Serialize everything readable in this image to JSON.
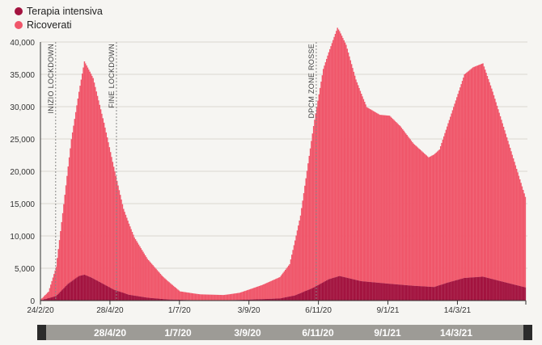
{
  "legend": [
    {
      "label": "Terapia intensiva",
      "color": "#a3133f"
    },
    {
      "label": "Ricoverati",
      "color": "#f0566a"
    }
  ],
  "annotations": [
    {
      "label": "INIZIO LOCKDOWN",
      "date": "2020-03-09"
    },
    {
      "label": "FINE LOCKDOWN",
      "date": "2020-05-04"
    },
    {
      "label": "DPCM ZONE ROSSE",
      "date": "2020-11-04"
    }
  ],
  "navigator": {
    "labels": [
      "28/4/20",
      "1/7/20",
      "3/9/20",
      "6/11/20",
      "9/1/21",
      "14/3/21"
    ]
  },
  "chart_data": {
    "type": "bar",
    "title": "",
    "xlabel": "",
    "ylabel": "",
    "ylim": [
      0,
      40000
    ],
    "yticks": [
      "0",
      "5,000",
      "10,000",
      "15,000",
      "20,000",
      "25,000",
      "30,000",
      "35,000",
      "40,000"
    ],
    "xticks": [
      "24/2/20",
      "28/4/20",
      "1/7/20",
      "3/9/20",
      "6/11/20",
      "9/1/21",
      "14/3/21"
    ],
    "xrange": [
      "2020-02-24",
      "2021-05-16"
    ],
    "stacked": true,
    "grid": true,
    "series": [
      {
        "name": "Terapia intensiva",
        "color": "#a3133f",
        "points": [
          [
            "2020-02-24",
            50
          ],
          [
            "2020-03-09",
            700
          ],
          [
            "2020-03-20",
            2600
          ],
          [
            "2020-03-30",
            3800
          ],
          [
            "2020-04-04",
            4000
          ],
          [
            "2020-04-10",
            3600
          ],
          [
            "2020-04-20",
            2700
          ],
          [
            "2020-05-01",
            1700
          ],
          [
            "2020-05-15",
            900
          ],
          [
            "2020-06-01",
            450
          ],
          [
            "2020-06-20",
            170
          ],
          [
            "2020-07-15",
            60
          ],
          [
            "2020-08-15",
            60
          ],
          [
            "2020-09-03",
            150
          ],
          [
            "2020-10-01",
            330
          ],
          [
            "2020-10-15",
            800
          ],
          [
            "2020-11-01",
            2000
          ],
          [
            "2020-11-15",
            3300
          ],
          [
            "2020-11-25",
            3800
          ],
          [
            "2020-12-15",
            3000
          ],
          [
            "2021-01-10",
            2600
          ],
          [
            "2021-01-31",
            2300
          ],
          [
            "2021-02-20",
            2100
          ],
          [
            "2021-03-05",
            2800
          ],
          [
            "2021-03-20",
            3500
          ],
          [
            "2021-04-06",
            3700
          ],
          [
            "2021-04-20",
            3100
          ],
          [
            "2021-05-16",
            2000
          ]
        ]
      },
      {
        "name": "Ricoverati",
        "color": "#f0566a",
        "points": [
          [
            "2020-02-24",
            150
          ],
          [
            "2020-03-02",
            1000
          ],
          [
            "2020-03-09",
            4500
          ],
          [
            "2020-03-16",
            13000
          ],
          [
            "2020-03-23",
            22000
          ],
          [
            "2020-03-30",
            28500
          ],
          [
            "2020-04-04",
            33000
          ],
          [
            "2020-04-12",
            31000
          ],
          [
            "2020-04-22",
            25000
          ],
          [
            "2020-05-01",
            19000
          ],
          [
            "2020-05-10",
            13000
          ],
          [
            "2020-05-20",
            9000
          ],
          [
            "2020-06-01",
            6000
          ],
          [
            "2020-06-15",
            3500
          ],
          [
            "2020-07-01",
            1300
          ],
          [
            "2020-07-20",
            900
          ],
          [
            "2020-08-10",
            800
          ],
          [
            "2020-08-25",
            1100
          ],
          [
            "2020-09-15",
            2200
          ],
          [
            "2020-10-01",
            3300
          ],
          [
            "2020-10-10",
            5000
          ],
          [
            "2020-10-20",
            12000
          ],
          [
            "2020-11-01",
            25000
          ],
          [
            "2020-11-10",
            33000
          ],
          [
            "2020-11-23",
            38500
          ],
          [
            "2020-12-01",
            36000
          ],
          [
            "2020-12-10",
            31000
          ],
          [
            "2020-12-20",
            27000
          ],
          [
            "2021-01-01",
            26000
          ],
          [
            "2021-01-10",
            26000
          ],
          [
            "2021-01-20",
            24500
          ],
          [
            "2021-02-01",
            22000
          ],
          [
            "2021-02-15",
            20000
          ],
          [
            "2021-02-25",
            21000
          ],
          [
            "2021-03-08",
            26000
          ],
          [
            "2021-03-20",
            31500
          ],
          [
            "2021-03-28",
            32500
          ],
          [
            "2021-04-06",
            33000
          ],
          [
            "2021-04-15",
            29000
          ],
          [
            "2021-04-25",
            24000
          ],
          [
            "2021-05-05",
            19000
          ],
          [
            "2021-05-16",
            13500
          ]
        ]
      }
    ]
  }
}
